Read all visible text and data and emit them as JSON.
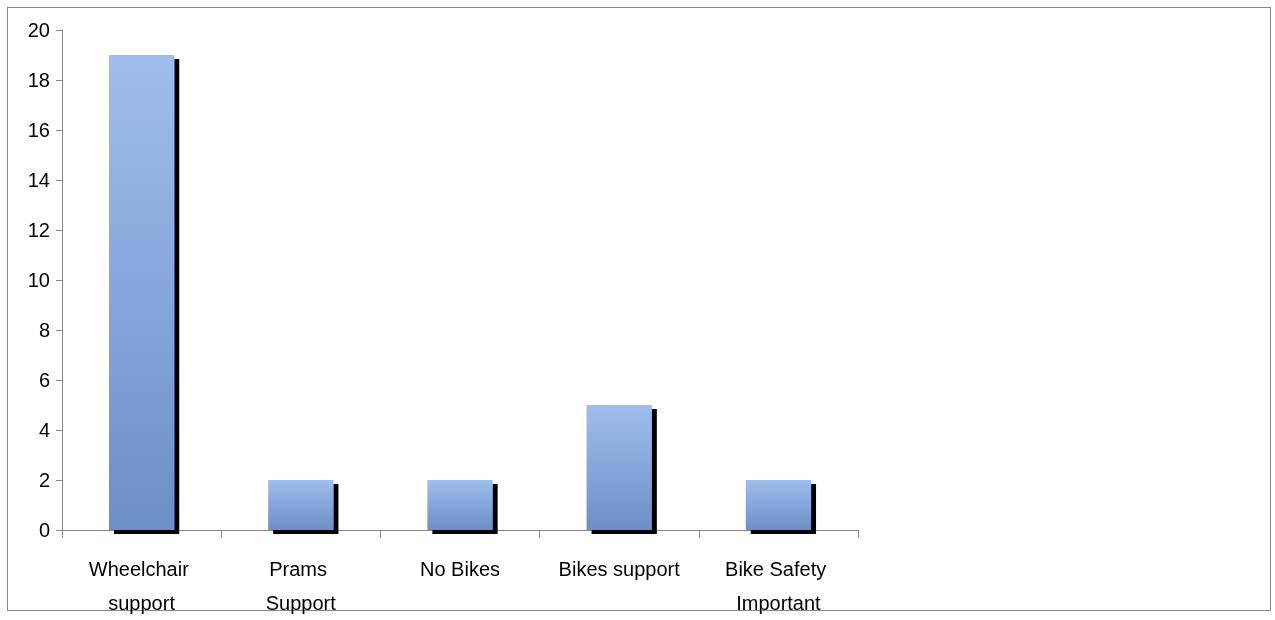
{
  "chart_data": {
    "type": "bar",
    "categories": [
      "Wheelchair support",
      "Prams Support",
      "No Bikes",
      "Bikes support",
      "Bike Safety Important"
    ],
    "values": [
      19,
      2,
      2,
      5,
      2
    ],
    "color": "#7fa8e8",
    "ylim": [
      0,
      20
    ],
    "yticks": [
      0,
      2,
      4,
      6,
      8,
      10,
      12,
      14,
      16,
      18,
      20
    ],
    "grid": false
  }
}
